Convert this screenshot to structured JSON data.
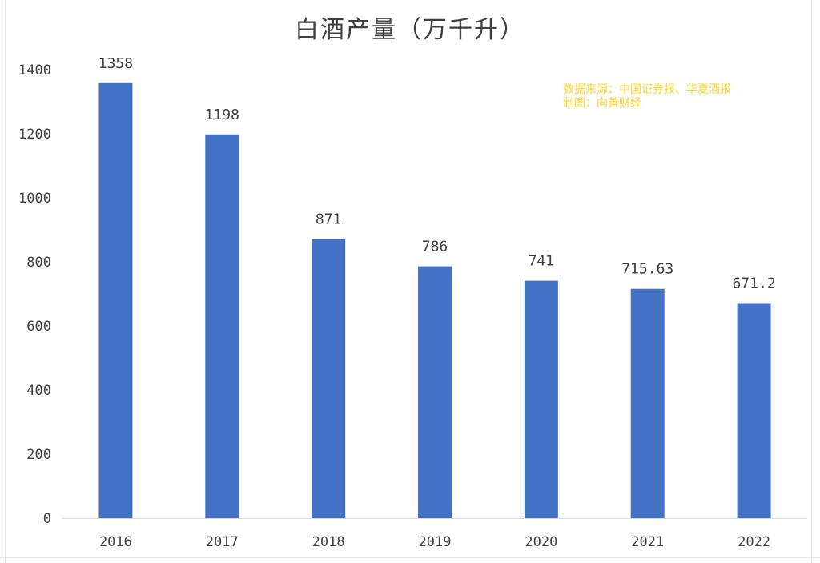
{
  "chart_data": {
    "type": "bar",
    "title": "白酒产量（万千升）",
    "categories": [
      "2016",
      "2017",
      "2018",
      "2019",
      "2020",
      "2021",
      "2022"
    ],
    "values": [
      1358,
      1198,
      871,
      786,
      741,
      715.63,
      671.2
    ],
    "value_labels": [
      "1358",
      "1198",
      "871",
      "786",
      "741",
      "715.63",
      "671.2"
    ],
    "ylim": [
      0,
      1400
    ],
    "yticks": [
      0,
      200,
      400,
      600,
      800,
      1000,
      1200,
      1400
    ],
    "xlabel": "",
    "ylabel": "",
    "grid": false,
    "bar_color": "#4472c4",
    "legend": "none"
  },
  "annotation": {
    "source_line": "数据来源：中国证券报、华夏酒报",
    "credit_line": "制图：向善财经",
    "color": "#ffd22e"
  }
}
